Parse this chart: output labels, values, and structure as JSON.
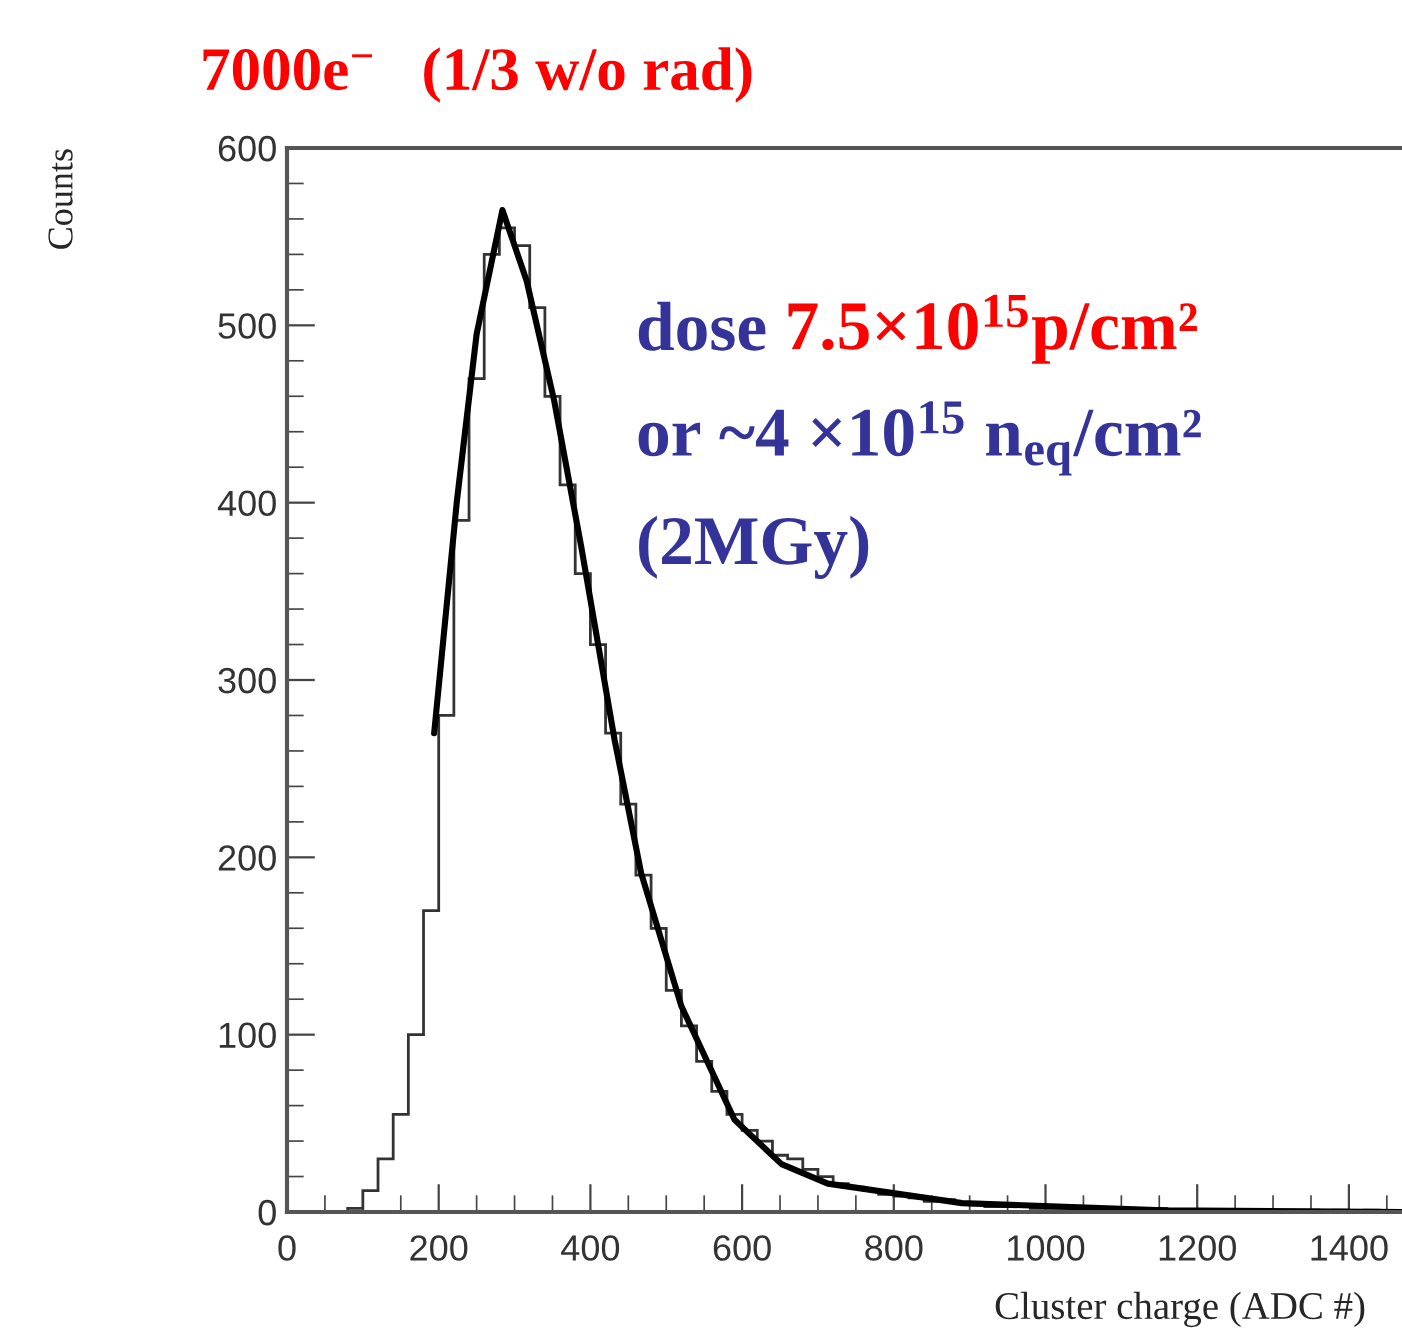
{
  "chart_data": {
    "type": "histogram",
    "title": "7000e$^{−}$   (1/3 w/o rad)",
    "xlabel": "Cluster charge (ADC #)",
    "ylabel": "Counts",
    "bins": [
      80,
      100,
      120,
      140,
      160,
      180,
      200,
      220,
      240,
      260,
      280,
      300,
      320,
      340,
      360,
      380,
      400,
      420,
      440,
      460,
      480,
      500,
      520,
      540,
      560,
      580,
      600,
      620,
      640,
      660,
      680,
      700,
      720,
      740,
      760,
      780,
      800,
      820,
      840,
      860,
      880,
      900,
      920,
      940,
      960,
      980,
      1000,
      1020,
      1040,
      1060,
      1080,
      1100,
      1120,
      1140,
      1160,
      1180,
      1200,
      1220,
      1240,
      1260,
      1280,
      1300,
      1320,
      1340,
      1360,
      1380,
      1400,
      1420,
      1440,
      1460
    ],
    "values": [
      2,
      12,
      30,
      55,
      100,
      170,
      280,
      390,
      470,
      540,
      555,
      545,
      510,
      460,
      410,
      360,
      320,
      270,
      230,
      190,
      160,
      125,
      105,
      85,
      68,
      55,
      46,
      40,
      32,
      30,
      24,
      20,
      16,
      14,
      12,
      10,
      9,
      8,
      6,
      7,
      5,
      4,
      3,
      3,
      4,
      2,
      2,
      2,
      1,
      2,
      1,
      1,
      1,
      2,
      1,
      1,
      1,
      1,
      1,
      1,
      1,
      0,
      1,
      1,
      0,
      1,
      0,
      1,
      0
    ],
    "color": "#333333",
    "series": [
      {
        "type": "line",
        "color": "#000000",
        "x": [
          194,
          224,
          250,
          284,
          316,
          352,
          388,
          432,
          467,
          520,
          590,
          652,
          713,
          890,
          1155,
          1470
        ],
        "values": [
          270,
          401,
          495,
          565,
          525,
          458,
          375,
          266,
          191,
          116,
          52,
          27,
          16,
          5,
          1,
          0
        ]
      }
    ],
    "annotations": [
      "dose ",
      "7.5×10$^{15}$p/cm²",
      "or ~4 ×10$^{15}$ n$_{eq}$/cm²",
      "(2MGy)"
    ],
    "xlim": [
      0,
      1470
    ],
    "ylim": [
      0,
      600
    ],
    "xticks": [
      0,
      200,
      400,
      600,
      800,
      1000,
      1200,
      1400
    ],
    "yticks": [
      0,
      100,
      200,
      300,
      400,
      500,
      600
    ],
    "grid": false,
    "legend": false
  }
}
